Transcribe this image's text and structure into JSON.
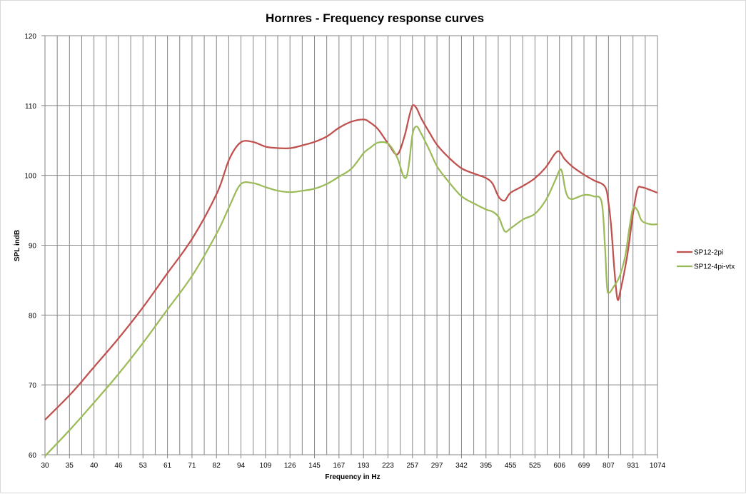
{
  "chart_data": {
    "type": "line",
    "title": "Hornres - Frequency response curves",
    "xlabel": "Frequency in Hz",
    "ylabel": "SPL indB",
    "ylim": [
      60,
      120
    ],
    "yticks": [
      60,
      70,
      80,
      90,
      100,
      110,
      120
    ],
    "x_scale": "log",
    "xlim": [
      30,
      1074
    ],
    "x_tick_labels": [
      "30",
      "35",
      "40",
      "46",
      "53",
      "61",
      "71",
      "82",
      "94",
      "109",
      "126",
      "145",
      "167",
      "193",
      "223",
      "257",
      "297",
      "342",
      "395",
      "455",
      "525",
      "606",
      "699",
      "807",
      "931",
      "1074"
    ],
    "grid": true,
    "legend_position": "right",
    "series": [
      {
        "name": "SP12-2pi",
        "color": "#c0504d",
        "points": [
          [
            30,
            65.0
          ],
          [
            35,
            68.8
          ],
          [
            40,
            72.6
          ],
          [
            46,
            76.6
          ],
          [
            53,
            81.0
          ],
          [
            61,
            85.8
          ],
          [
            71,
            91.0
          ],
          [
            82,
            97.5
          ],
          [
            88,
            102.3
          ],
          [
            94,
            104.7
          ],
          [
            101,
            104.8
          ],
          [
            109,
            104.1
          ],
          [
            117,
            103.9
          ],
          [
            126,
            103.9
          ],
          [
            135,
            104.3
          ],
          [
            145,
            104.8
          ],
          [
            156,
            105.6
          ],
          [
            167,
            106.8
          ],
          [
            180,
            107.7
          ],
          [
            193,
            108.0
          ],
          [
            200,
            107.6
          ],
          [
            210,
            106.6
          ],
          [
            223,
            104.5
          ],
          [
            235,
            103.0
          ],
          [
            245,
            105.6
          ],
          [
            252,
            108.5
          ],
          [
            257,
            110.0
          ],
          [
            263,
            109.6
          ],
          [
            270,
            108.2
          ],
          [
            283,
            106.2
          ],
          [
            297,
            104.3
          ],
          [
            318,
            102.5
          ],
          [
            342,
            101.0
          ],
          [
            370,
            100.2
          ],
          [
            395,
            99.6
          ],
          [
            410,
            98.8
          ],
          [
            425,
            96.9
          ],
          [
            440,
            96.4
          ],
          [
            455,
            97.5
          ],
          [
            490,
            98.5
          ],
          [
            525,
            99.6
          ],
          [
            560,
            101.2
          ],
          [
            590,
            103.1
          ],
          [
            606,
            103.4
          ],
          [
            625,
            102.3
          ],
          [
            655,
            101.2
          ],
          [
            699,
            100.1
          ],
          [
            740,
            99.3
          ],
          [
            790,
            98.4
          ],
          [
            807,
            96.0
          ],
          [
            820,
            92.5
          ],
          [
            835,
            86.5
          ],
          [
            850,
            82.3
          ],
          [
            865,
            83.5
          ],
          [
            900,
            88.5
          ],
          [
            931,
            94.5
          ],
          [
            955,
            98.0
          ],
          [
            980,
            98.3
          ],
          [
            1030,
            97.9
          ],
          [
            1074,
            97.5
          ]
        ]
      },
      {
        "name": "SP12-4pi-vtx",
        "color": "#9bbb59",
        "points": [
          [
            30,
            59.8
          ],
          [
            35,
            63.8
          ],
          [
            40,
            67.5
          ],
          [
            46,
            71.5
          ],
          [
            53,
            75.9
          ],
          [
            61,
            80.6
          ],
          [
            71,
            85.7
          ],
          [
            82,
            91.8
          ],
          [
            88,
            95.5
          ],
          [
            94,
            98.7
          ],
          [
            101,
            98.9
          ],
          [
            109,
            98.3
          ],
          [
            117,
            97.8
          ],
          [
            126,
            97.6
          ],
          [
            135,
            97.8
          ],
          [
            145,
            98.1
          ],
          [
            156,
            98.8
          ],
          [
            167,
            99.8
          ],
          [
            180,
            101.0
          ],
          [
            193,
            103.2
          ],
          [
            200,
            103.9
          ],
          [
            210,
            104.7
          ],
          [
            223,
            104.5
          ],
          [
            235,
            102.5
          ],
          [
            243,
            100.0
          ],
          [
            248,
            99.8
          ],
          [
            252,
            102.0
          ],
          [
            257,
            106.0
          ],
          [
            263,
            107.0
          ],
          [
            270,
            106.0
          ],
          [
            283,
            103.7
          ],
          [
            297,
            101.2
          ],
          [
            318,
            99.0
          ],
          [
            342,
            97.0
          ],
          [
            370,
            95.9
          ],
          [
            395,
            95.1
          ],
          [
            410,
            94.8
          ],
          [
            425,
            94.0
          ],
          [
            440,
            92.0
          ],
          [
            455,
            92.4
          ],
          [
            490,
            93.7
          ],
          [
            525,
            94.5
          ],
          [
            560,
            96.5
          ],
          [
            590,
            99.2
          ],
          [
            606,
            100.7
          ],
          [
            615,
            100.5
          ],
          [
            630,
            97.5
          ],
          [
            650,
            96.6
          ],
          [
            699,
            97.2
          ],
          [
            740,
            97.0
          ],
          [
            775,
            96.2
          ],
          [
            790,
            90.0
          ],
          [
            800,
            84.0
          ],
          [
            810,
            83.2
          ],
          [
            830,
            84.0
          ],
          [
            860,
            85.5
          ],
          [
            890,
            88.5
          ],
          [
            910,
            92.2
          ],
          [
            931,
            95.3
          ],
          [
            955,
            95.0
          ],
          [
            980,
            93.5
          ],
          [
            1030,
            93.0
          ],
          [
            1074,
            93.0
          ]
        ]
      }
    ]
  }
}
